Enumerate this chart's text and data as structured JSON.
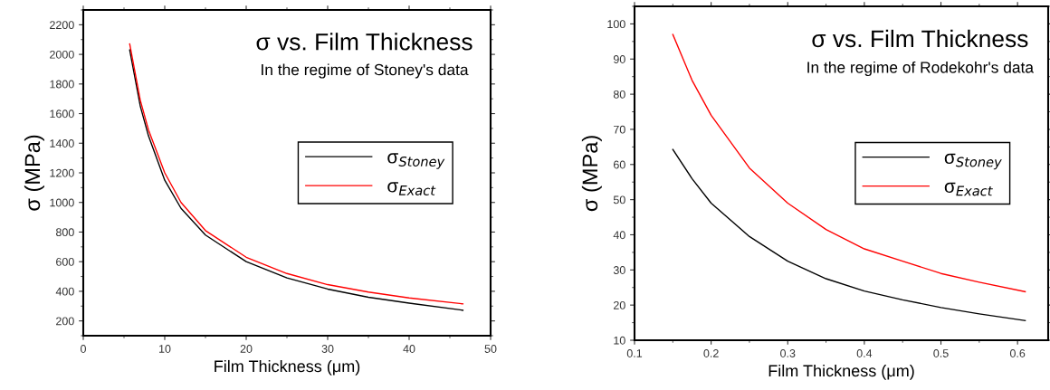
{
  "chart_data": [
    {
      "type": "line",
      "title": "σ vs. Film Thickness",
      "subtitle": "In the regime of Stoney's data",
      "xlabel": "Film Thickness (μm)",
      "ylabel": "σ (MPa)",
      "xlim": [
        0,
        50
      ],
      "xticks": [
        0,
        10,
        20,
        30,
        40,
        50
      ],
      "ylim": [
        100,
        2300
      ],
      "yticks": [
        200,
        400,
        600,
        800,
        1000,
        1200,
        1400,
        1600,
        1800,
        2000,
        2200
      ],
      "legend": "right",
      "grid": false,
      "marker": "none",
      "line_style": "solid",
      "series": [
        {
          "name": "σ$_{Stoney}$",
          "color": "#000000",
          "x": [
            5.7,
            7,
            8,
            10,
            12,
            15,
            20,
            25,
            30,
            35,
            40,
            46.6
          ],
          "values": [
            2030,
            1650,
            1450,
            1150,
            960,
            780,
            600,
            490,
            415,
            360,
            320,
            272
          ]
        },
        {
          "name": "σ$_{Exact}$",
          "color": "#ff0000",
          "x": [
            5.7,
            7,
            8,
            10,
            12,
            15,
            20,
            25,
            30,
            35,
            40,
            46.6
          ],
          "values": [
            2070,
            1690,
            1490,
            1200,
            1000,
            810,
            630,
            520,
            445,
            395,
            355,
            315
          ]
        }
      ]
    },
    {
      "type": "line",
      "title": "σ vs. Film Thickness",
      "subtitle": "In the regime of Rodekohr's data",
      "xlabel": "Film Thickness (μm)",
      "ylabel": "σ (MPa)",
      "xlim": [
        0.1,
        0.64
      ],
      "xticks": [
        0.1,
        0.2,
        0.3,
        0.4,
        0.5,
        0.6
      ],
      "ylim": [
        10,
        105
      ],
      "yticks": [
        10,
        20,
        30,
        40,
        50,
        60,
        70,
        80,
        90,
        100
      ],
      "legend": "right",
      "grid": false,
      "marker": "none",
      "line_style": "solid",
      "series": [
        {
          "name": "σ$_{Stoney}$",
          "color": "#000000",
          "x": [
            0.15,
            0.175,
            0.2,
            0.25,
            0.3,
            0.35,
            0.4,
            0.45,
            0.5,
            0.55,
            0.61
          ],
          "values": [
            64.3,
            56,
            49,
            39.5,
            32.5,
            27.5,
            24,
            21.5,
            19.3,
            17.5,
            15.6
          ]
        },
        {
          "name": "σ$_{Exact}$",
          "color": "#ff0000",
          "x": [
            0.15,
            0.175,
            0.2,
            0.25,
            0.3,
            0.35,
            0.4,
            0.45,
            0.5,
            0.55,
            0.61
          ],
          "values": [
            97,
            84,
            74,
            59,
            49,
            41.5,
            36,
            32.5,
            29,
            26.5,
            23.8
          ]
        }
      ]
    }
  ]
}
